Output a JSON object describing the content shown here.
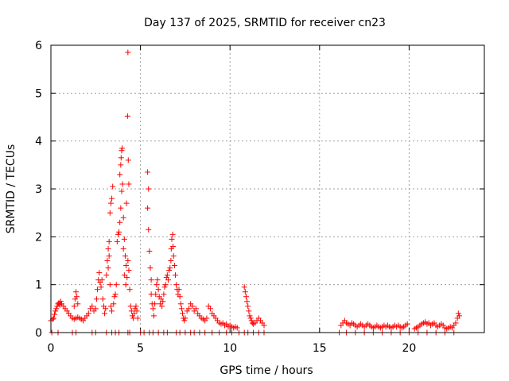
{
  "chart_data": {
    "type": "scatter",
    "title": "Day 137 of 2025, SRMTID for receiver cn23",
    "xlabel": "GPS time / hours",
    "ylabel": "SRMTID / TECUs",
    "xlim": [
      0,
      24.2
    ],
    "ylim": [
      0,
      6
    ],
    "xticks": [
      0,
      5,
      10,
      15,
      20
    ],
    "yticks": [
      0,
      1,
      2,
      3,
      4,
      5,
      6
    ],
    "grid": true,
    "marker": "plus",
    "color": "#ff0000",
    "series": [
      {
        "name": "cn23",
        "points": [
          [
            0.0,
            0.25
          ],
          [
            0.1,
            0.28
          ],
          [
            0.15,
            0.3
          ],
          [
            0.2,
            0.38
          ],
          [
            0.25,
            0.45
          ],
          [
            0.3,
            0.5
          ],
          [
            0.35,
            0.55
          ],
          [
            0.4,
            0.6
          ],
          [
            0.45,
            0.62
          ],
          [
            0.5,
            0.58
          ],
          [
            0.55,
            0.65
          ],
          [
            0.6,
            0.6
          ],
          [
            0.7,
            0.55
          ],
          [
            0.8,
            0.5
          ],
          [
            0.9,
            0.45
          ],
          [
            1.0,
            0.4
          ],
          [
            1.1,
            0.35
          ],
          [
            1.2,
            0.3
          ],
          [
            1.3,
            0.28
          ],
          [
            1.4,
            0.3
          ],
          [
            1.5,
            0.32
          ],
          [
            1.6,
            0.3
          ],
          [
            1.7,
            0.28
          ],
          [
            1.8,
            0.25
          ],
          [
            1.9,
            0.3
          ],
          [
            2.0,
            0.35
          ],
          [
            1.3,
            0.55
          ],
          [
            1.35,
            0.7
          ],
          [
            1.4,
            0.85
          ],
          [
            1.45,
            0.75
          ],
          [
            1.5,
            0.6
          ],
          [
            2.1,
            0.4
          ],
          [
            2.2,
            0.5
          ],
          [
            2.3,
            0.55
          ],
          [
            2.4,
            0.45
          ],
          [
            2.5,
            0.5
          ],
          [
            2.55,
            0.7
          ],
          [
            2.6,
            0.9
          ],
          [
            2.65,
            1.1
          ],
          [
            2.7,
            1.25
          ],
          [
            2.75,
            1.05
          ],
          [
            2.8,
            0.95
          ],
          [
            2.85,
            1.1
          ],
          [
            2.9,
            0.7
          ],
          [
            2.95,
            0.55
          ],
          [
            3.0,
            0.4
          ],
          [
            3.05,
            0.5
          ],
          [
            3.1,
            1.2
          ],
          [
            3.15,
            1.5
          ],
          [
            3.2,
            1.75
          ],
          [
            3.25,
            1.9
          ],
          [
            3.3,
            2.5
          ],
          [
            3.35,
            2.7
          ],
          [
            3.4,
            2.8
          ],
          [
            3.45,
            3.05
          ],
          [
            3.2,
            1.35
          ],
          [
            3.25,
            1.6
          ],
          [
            3.3,
            1.0
          ],
          [
            3.35,
            0.55
          ],
          [
            3.4,
            0.45
          ],
          [
            3.5,
            0.6
          ],
          [
            3.55,
            0.75
          ],
          [
            3.6,
            0.8
          ],
          [
            3.65,
            1.0
          ],
          [
            3.7,
            1.9
          ],
          [
            3.75,
            2.05
          ],
          [
            3.8,
            2.1
          ],
          [
            3.85,
            2.3
          ],
          [
            3.9,
            2.6
          ],
          [
            3.95,
            2.95
          ],
          [
            4.0,
            3.1
          ],
          [
            3.85,
            3.3
          ],
          [
            3.9,
            3.5
          ],
          [
            3.92,
            3.65
          ],
          [
            3.95,
            3.8
          ],
          [
            3.98,
            3.85
          ],
          [
            4.05,
            2.4
          ],
          [
            4.1,
            1.95
          ],
          [
            4.15,
            1.6
          ],
          [
            4.2,
            1.4
          ],
          [
            4.25,
            1.15
          ],
          [
            4.3,
            1.5
          ],
          [
            4.35,
            1.3
          ],
          [
            4.4,
            0.9
          ],
          [
            4.45,
            0.55
          ],
          [
            4.5,
            0.45
          ],
          [
            4.55,
            0.35
          ],
          [
            4.6,
            0.3
          ],
          [
            4.65,
            0.4
          ],
          [
            4.7,
            0.5
          ],
          [
            4.75,
            0.55
          ],
          [
            4.8,
            0.45
          ],
          [
            4.85,
            0.3
          ],
          [
            4.3,
            5.85
          ],
          [
            4.28,
            4.52
          ],
          [
            4.32,
            3.6
          ],
          [
            4.35,
            3.1
          ],
          [
            4.22,
            2.7
          ],
          [
            4.05,
            1.75
          ],
          [
            4.1,
            1.2
          ],
          [
            4.18,
            1.0
          ],
          [
            5.4,
            3.35
          ],
          [
            5.45,
            3.0
          ],
          [
            5.4,
            2.6
          ],
          [
            5.45,
            2.15
          ],
          [
            5.5,
            1.7
          ],
          [
            5.55,
            1.35
          ],
          [
            5.6,
            1.1
          ],
          [
            5.6,
            0.8
          ],
          [
            5.65,
            0.6
          ],
          [
            5.7,
            0.5
          ],
          [
            5.75,
            0.35
          ],
          [
            5.8,
            0.6
          ],
          [
            5.85,
            0.8
          ],
          [
            5.9,
            1.0
          ],
          [
            5.95,
            1.1
          ],
          [
            6.0,
            0.9
          ],
          [
            6.05,
            0.75
          ],
          [
            6.1,
            0.6
          ],
          [
            6.15,
            0.7
          ],
          [
            6.2,
            0.55
          ],
          [
            6.25,
            0.65
          ],
          [
            6.3,
            0.8
          ],
          [
            6.35,
            0.95
          ],
          [
            6.4,
            1.0
          ],
          [
            6.45,
            1.15
          ],
          [
            6.5,
            1.2
          ],
          [
            6.55,
            1.1
          ],
          [
            6.6,
            1.3
          ],
          [
            6.65,
            1.35
          ],
          [
            6.7,
            1.5
          ],
          [
            6.72,
            1.75
          ],
          [
            6.75,
            1.95
          ],
          [
            6.8,
            2.05
          ],
          [
            6.82,
            1.8
          ],
          [
            6.85,
            1.6
          ],
          [
            6.9,
            1.4
          ],
          [
            6.95,
            1.2
          ],
          [
            7.0,
            1.0
          ],
          [
            7.05,
            0.9
          ],
          [
            7.1,
            0.8
          ],
          [
            7.15,
            0.9
          ],
          [
            7.2,
            0.75
          ],
          [
            7.25,
            0.6
          ],
          [
            7.3,
            0.5
          ],
          [
            7.35,
            0.4
          ],
          [
            7.4,
            0.3
          ],
          [
            7.45,
            0.25
          ],
          [
            7.5,
            0.3
          ],
          [
            7.6,
            0.45
          ],
          [
            7.7,
            0.5
          ],
          [
            7.8,
            0.6
          ],
          [
            7.9,
            0.55
          ],
          [
            8.0,
            0.45
          ],
          [
            8.1,
            0.5
          ],
          [
            8.2,
            0.4
          ],
          [
            8.3,
            0.35
          ],
          [
            8.4,
            0.3
          ],
          [
            8.5,
            0.28
          ],
          [
            8.6,
            0.25
          ],
          [
            8.7,
            0.3
          ],
          [
            8.8,
            0.55
          ],
          [
            8.9,
            0.5
          ],
          [
            9.0,
            0.4
          ],
          [
            9.1,
            0.35
          ],
          [
            9.2,
            0.3
          ],
          [
            9.3,
            0.25
          ],
          [
            9.4,
            0.2
          ],
          [
            9.5,
            0.18
          ],
          [
            9.6,
            0.2
          ],
          [
            9.7,
            0.15
          ],
          [
            9.8,
            0.18
          ],
          [
            9.9,
            0.12
          ],
          [
            10.0,
            0.15
          ],
          [
            10.1,
            0.12
          ],
          [
            10.2,
            0.1
          ],
          [
            10.3,
            0.12
          ],
          [
            10.4,
            0.1
          ],
          [
            10.8,
            0.95
          ],
          [
            10.85,
            0.85
          ],
          [
            10.9,
            0.75
          ],
          [
            10.95,
            0.65
          ],
          [
            11.0,
            0.55
          ],
          [
            11.05,
            0.45
          ],
          [
            11.1,
            0.35
          ],
          [
            11.15,
            0.3
          ],
          [
            11.2,
            0.25
          ],
          [
            11.25,
            0.2
          ],
          [
            11.3,
            0.18
          ],
          [
            11.4,
            0.2
          ],
          [
            11.5,
            0.25
          ],
          [
            11.6,
            0.3
          ],
          [
            11.7,
            0.25
          ],
          [
            11.8,
            0.2
          ],
          [
            11.9,
            0.15
          ],
          [
            16.2,
            0.15
          ],
          [
            16.3,
            0.2
          ],
          [
            16.4,
            0.25
          ],
          [
            16.5,
            0.2
          ],
          [
            16.6,
            0.18
          ],
          [
            16.7,
            0.15
          ],
          [
            16.8,
            0.2
          ],
          [
            16.9,
            0.18
          ],
          [
            17.0,
            0.15
          ],
          [
            17.1,
            0.12
          ],
          [
            17.2,
            0.15
          ],
          [
            17.3,
            0.18
          ],
          [
            17.4,
            0.15
          ],
          [
            17.5,
            0.12
          ],
          [
            17.6,
            0.15
          ],
          [
            17.7,
            0.18
          ],
          [
            17.8,
            0.15
          ],
          [
            17.9,
            0.12
          ],
          [
            18.0,
            0.1
          ],
          [
            18.1,
            0.12
          ],
          [
            18.2,
            0.15
          ],
          [
            18.3,
            0.12
          ],
          [
            18.4,
            0.1
          ],
          [
            18.5,
            0.12
          ],
          [
            18.6,
            0.15
          ],
          [
            18.7,
            0.12
          ],
          [
            18.8,
            0.15
          ],
          [
            18.9,
            0.12
          ],
          [
            19.0,
            0.1
          ],
          [
            19.1,
            0.12
          ],
          [
            19.2,
            0.15
          ],
          [
            19.3,
            0.12
          ],
          [
            19.4,
            0.15
          ],
          [
            19.5,
            0.12
          ],
          [
            19.6,
            0.1
          ],
          [
            19.7,
            0.12
          ],
          [
            19.8,
            0.15
          ],
          [
            19.9,
            0.18
          ],
          [
            20.3,
            0.08
          ],
          [
            20.4,
            0.1
          ],
          [
            20.5,
            0.12
          ],
          [
            20.6,
            0.15
          ],
          [
            20.7,
            0.18
          ],
          [
            20.8,
            0.2
          ],
          [
            20.9,
            0.22
          ],
          [
            21.0,
            0.18
          ],
          [
            21.1,
            0.2
          ],
          [
            21.2,
            0.15
          ],
          [
            21.3,
            0.18
          ],
          [
            21.4,
            0.2
          ],
          [
            21.5,
            0.15
          ],
          [
            21.6,
            0.12
          ],
          [
            21.7,
            0.15
          ],
          [
            21.8,
            0.18
          ],
          [
            21.9,
            0.15
          ],
          [
            22.0,
            0.1
          ],
          [
            22.1,
            0.08
          ],
          [
            22.2,
            0.1
          ],
          [
            22.3,
            0.12
          ],
          [
            22.4,
            0.1
          ],
          [
            22.5,
            0.15
          ],
          [
            22.6,
            0.2
          ],
          [
            22.7,
            0.3
          ],
          [
            22.75,
            0.4
          ],
          [
            22.8,
            0.35
          ],
          [
            0.05,
            0.0
          ],
          [
            0.4,
            0.0
          ],
          [
            1.2,
            0.0
          ],
          [
            1.4,
            0.0
          ],
          [
            2.3,
            0.0
          ],
          [
            2.5,
            0.0
          ],
          [
            3.1,
            0.0
          ],
          [
            3.4,
            0.0
          ],
          [
            3.6,
            0.0
          ],
          [
            3.8,
            0.0
          ],
          [
            4.3,
            0.0
          ],
          [
            4.4,
            0.0
          ],
          [
            5.0,
            0.0
          ],
          [
            5.2,
            0.0
          ],
          [
            5.5,
            0.0
          ],
          [
            5.7,
            0.0
          ],
          [
            6.0,
            0.0
          ],
          [
            6.3,
            0.0
          ],
          [
            6.5,
            0.0
          ],
          [
            7.0,
            0.0
          ],
          [
            7.2,
            0.0
          ],
          [
            7.5,
            0.0
          ],
          [
            7.8,
            0.0
          ],
          [
            8.0,
            0.0
          ],
          [
            8.3,
            0.0
          ],
          [
            8.6,
            0.0
          ],
          [
            9.0,
            0.0
          ],
          [
            9.4,
            0.0
          ],
          [
            9.8,
            0.0
          ],
          [
            10.1,
            0.0
          ],
          [
            10.5,
            0.0
          ],
          [
            10.8,
            0.0
          ],
          [
            11.0,
            0.0
          ],
          [
            11.3,
            0.0
          ],
          [
            11.6,
            0.0
          ],
          [
            11.9,
            0.0
          ],
          [
            16.1,
            0.0
          ],
          [
            16.5,
            0.0
          ],
          [
            17.0,
            0.0
          ],
          [
            17.5,
            0.0
          ],
          [
            18.0,
            0.0
          ],
          [
            18.5,
            0.0
          ],
          [
            19.0,
            0.0
          ],
          [
            19.5,
            0.0
          ],
          [
            20.0,
            0.0
          ],
          [
            20.5,
            0.0
          ],
          [
            21.0,
            0.0
          ],
          [
            21.5,
            0.0
          ],
          [
            22.0,
            0.0
          ],
          [
            22.5,
            0.0
          ]
        ]
      }
    ]
  }
}
